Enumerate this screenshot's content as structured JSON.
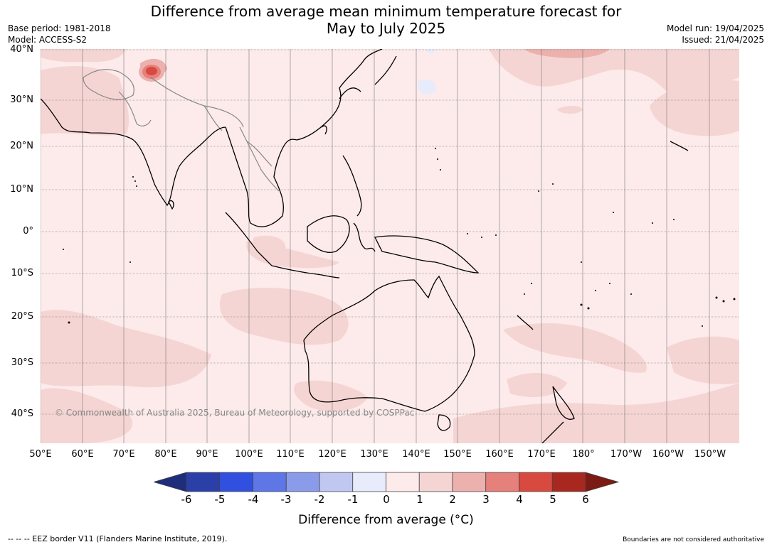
{
  "title_line1": "Difference from average mean minimum temperature forecast for",
  "title_line2": "May to July 2025",
  "base_period": "Base period: 1981-2018",
  "model": "Model: ACCESS-S2",
  "model_run": "Model run: 19/04/2025",
  "issued": "Issued: 21/04/2025",
  "copyright": "© Commonwealth of Australia 2025, Bureau of Meteorology, supported by COSPPac",
  "lat_labels": [
    "40°N",
    "30°N",
    "20°N",
    "10°N",
    "0°",
    "10°S",
    "20°S",
    "30°S",
    "40°S"
  ],
  "lon_labels": [
    "50°E",
    "60°E",
    "70°E",
    "80°E",
    "90°E",
    "100°E",
    "110°E",
    "120°E",
    "130°E",
    "140°E",
    "150°E",
    "160°E",
    "170°E",
    "180°",
    "170°W",
    "160°W",
    "150°W"
  ],
  "colorbar": {
    "ticks": [
      "-6",
      "-5",
      "-4",
      "-3",
      "-2",
      "-1",
      "0",
      "1",
      "2",
      "3",
      "4",
      "5",
      "6"
    ],
    "colors": [
      "#2a3fa8",
      "#3150e0",
      "#5e76e6",
      "#8a9bea",
      "#c0c8f2",
      "#e8ebfb",
      "#fcebea",
      "#f5d5d3",
      "#ecb0ad",
      "#e6807a",
      "#d84a3f",
      "#a8281f"
    ],
    "under_color": "#1f2d7a",
    "over_color": "#7c1a14",
    "label": "Difference from average (°C)"
  },
  "footer_left": "-- -- -- EEZ border V11 (Flanders Marine Institute, 2019).",
  "footer_right": "Boundaries are not considered authoritative",
  "map_colors": {
    "background_0_to_1": "#fcebea",
    "band_1_to_2": "#f5d5d3",
    "band_2_to_3": "#ecb0ad",
    "band_3_to_4": "#e6807a",
    "band_4_to_5": "#d84a3f",
    "band_minus1_to_0": "#e8ebfb"
  }
}
